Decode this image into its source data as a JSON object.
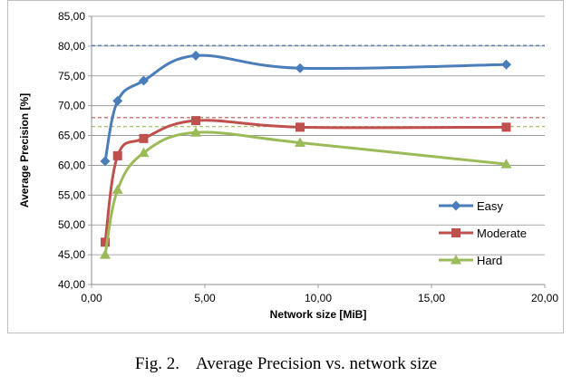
{
  "chart_data": {
    "type": "line",
    "xlabel": "Network size [MiB]",
    "ylabel": "Average Precision [%]",
    "xlim": [
      0,
      20
    ],
    "ylim": [
      40,
      85
    ],
    "xticks": [
      0,
      5,
      10,
      15,
      20
    ],
    "yticks": [
      40,
      45,
      50,
      55,
      60,
      65,
      70,
      75,
      80,
      85
    ],
    "xtick_labels": [
      "0,00",
      "5,00",
      "10,00",
      "15,00",
      "20,00"
    ],
    "ytick_labels": [
      "40,00",
      "45,00",
      "50,00",
      "55,00",
      "60,00",
      "65,00",
      "70,00",
      "75,00",
      "80,00",
      "85,00"
    ],
    "grid": "horizontal",
    "legend_position": "bottom-right",
    "series": [
      {
        "name": "Easy",
        "color": "#4a7ebb",
        "marker": "diamond",
        "x": [
          0.6,
          1.15,
          2.3,
          4.6,
          9.2,
          18.3
        ],
        "y": [
          60.7,
          70.8,
          74.2,
          78.4,
          76.3,
          76.9
        ],
        "reference": 80.1
      },
      {
        "name": "Moderate",
        "color": "#c0504d",
        "marker": "square",
        "x": [
          0.6,
          1.15,
          2.3,
          4.6,
          9.2,
          18.3
        ],
        "y": [
          47.1,
          61.6,
          64.5,
          67.5,
          66.4,
          66.4
        ],
        "reference": 68.0
      },
      {
        "name": "Hard",
        "color": "#9bbb59",
        "marker": "triangle",
        "x": [
          0.6,
          1.15,
          2.3,
          4.6,
          9.2,
          18.3
        ],
        "y": [
          45.0,
          55.9,
          62.1,
          65.5,
          63.8,
          60.2
        ],
        "reference": 66.5
      }
    ]
  },
  "caption": {
    "label": "Fig. 2.",
    "text": "Average Precision vs. network size"
  }
}
